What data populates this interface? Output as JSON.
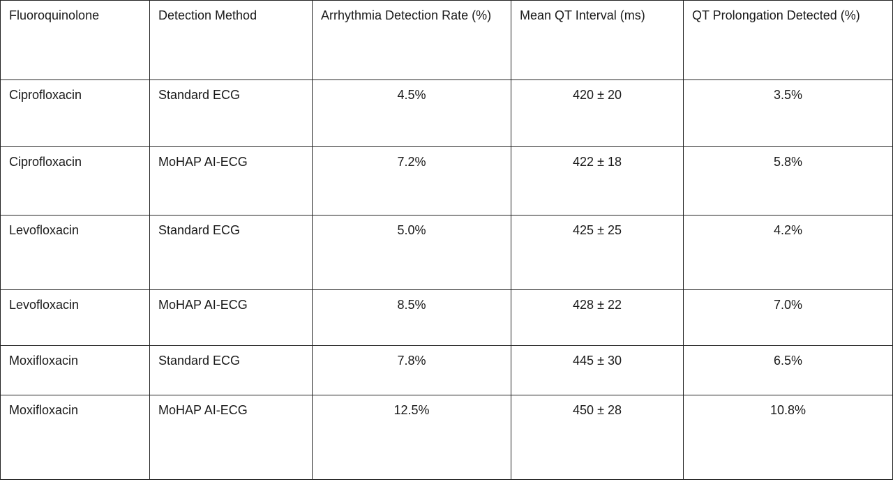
{
  "table": {
    "headers": [
      "Fluoroquinolone",
      "Detection Method",
      "Arrhythmia Detection Rate (%)",
      "Mean QT Interval (ms)",
      "QT Prolongation Detected (%)"
    ],
    "rows": [
      [
        "Ciprofloxacin",
        "Standard ECG",
        "4.5%",
        "420 ± 20",
        "3.5%"
      ],
      [
        "Ciprofloxacin",
        "MoHAP AI-ECG",
        "7.2%",
        "422 ± 18",
        "5.8%"
      ],
      [
        "Levofloxacin",
        "Standard ECG",
        "5.0%",
        "425 ± 25",
        "4.2%"
      ],
      [
        "Levofloxacin",
        "MoHAP AI-ECG",
        "8.5%",
        "428 ± 22",
        "7.0%"
      ],
      [
        "Moxifloxacin",
        "Standard ECG",
        "7.8%",
        "445 ± 30",
        "6.5%"
      ],
      [
        "Moxifloxacin",
        "MoHAP AI-ECG",
        "12.5%",
        "450 ± 28",
        "10.8%"
      ]
    ]
  }
}
